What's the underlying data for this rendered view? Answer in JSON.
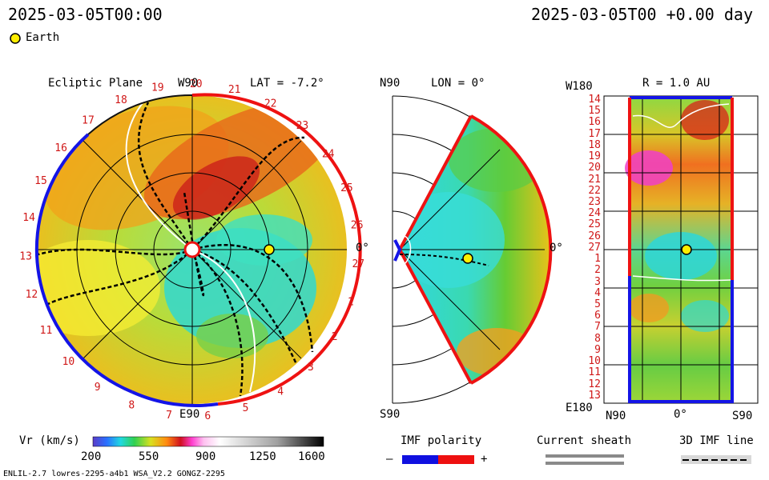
{
  "header": {
    "left_time": "2025-03-05T00:00",
    "right_time": "2025-03-05T00 +0.00 day"
  },
  "legend": {
    "earth_label": "Earth"
  },
  "panels": {
    "ecliptic": {
      "title": "Ecliptic Plane",
      "top_label": "W90",
      "bottom_label": "E90",
      "right_label": "0°",
      "lat_label": "LAT = -7.2°",
      "carrington_numbers": [
        "19",
        "20",
        "21",
        "22",
        "23",
        "24",
        "25",
        "26",
        "27",
        "1",
        "2",
        "3",
        "4",
        "5",
        "6",
        "7",
        "8",
        "9",
        "10",
        "11",
        "12",
        "13",
        "14",
        "15",
        "16",
        "17",
        "18"
      ]
    },
    "meridional": {
      "top_label": "N90",
      "bottom_label": "S90",
      "lon_label": "LON = 0°",
      "right_label": "0°"
    },
    "radial": {
      "top_left_label": "W180",
      "bottom_left_label": "E180",
      "r_label": "R = 1.0 AU",
      "bottom_ticks": [
        "N90",
        "0°",
        "S90"
      ],
      "y_ticks": [
        "14",
        "15",
        "16",
        "17",
        "18",
        "19",
        "20",
        "21",
        "22",
        "23",
        "24",
        "25",
        "26",
        "27",
        "1",
        "2",
        "3",
        "4",
        "5",
        "6",
        "7",
        "8",
        "9",
        "10",
        "11",
        "12",
        "13"
      ]
    }
  },
  "colorbar": {
    "label": "Vr (km/s)",
    "ticks": [
      "200",
      "550",
      "900",
      "1250",
      "1600"
    ],
    "min": 200,
    "max": 1600
  },
  "imf_polarity": {
    "title": "IMF polarity",
    "minus": "–",
    "plus": "+",
    "neg_color": "#1010e0",
    "pos_color": "#ee1010"
  },
  "current_sheath": {
    "title": "Current sheath"
  },
  "imf_line": {
    "title": "3D IMF line"
  },
  "footer": {
    "model_text": "ENLIL-2.7 lowres-2295-a4b1 WSA_V2.2 GONGZ-2295"
  },
  "colors": {
    "sector_blue": "#1414e6",
    "sector_red": "#ee1212",
    "number_red": "#d01818"
  }
}
